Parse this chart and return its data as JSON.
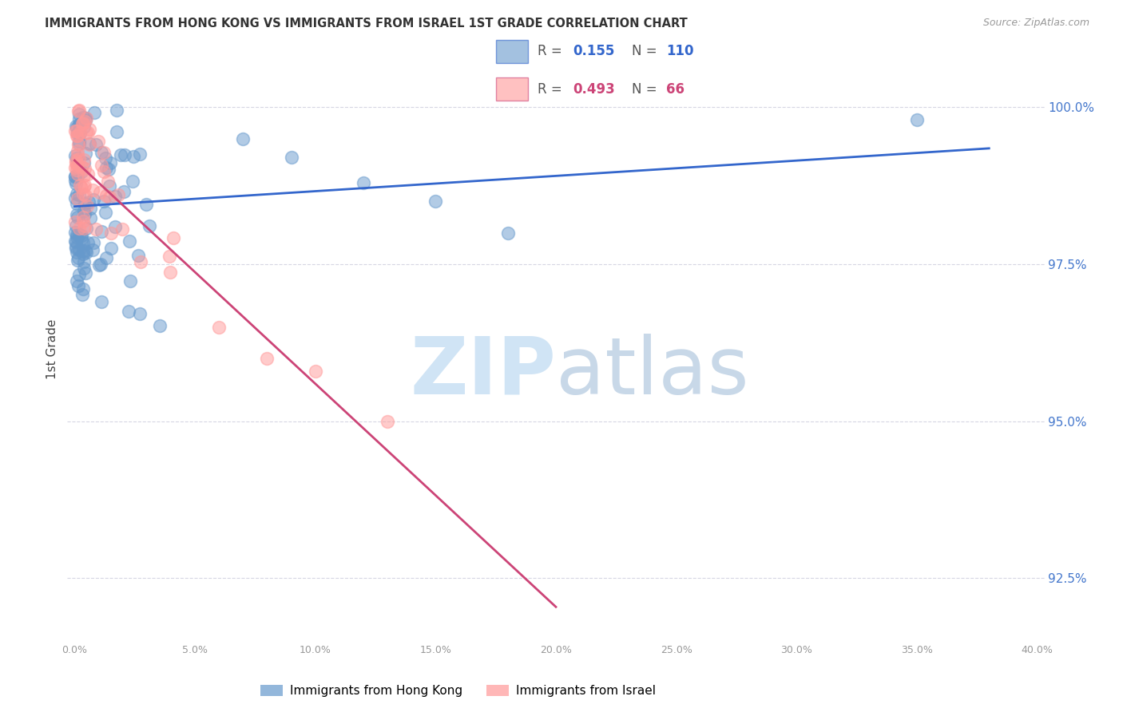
{
  "title": "IMMIGRANTS FROM HONG KONG VS IMMIGRANTS FROM ISRAEL 1ST GRADE CORRELATION CHART",
  "source": "Source: ZipAtlas.com",
  "ylabel": "1st Grade",
  "ylabel_right_ticks": [
    92.5,
    95.0,
    97.5,
    100.0
  ],
  "ylabel_right_labels": [
    "92.5%",
    "95.0%",
    "97.5%",
    "100.0%"
  ],
  "xmin": 0.0,
  "xmax": 40.0,
  "ymin": 91.5,
  "ymax": 100.8,
  "R_hk": 0.155,
  "N_hk": 110,
  "R_isr": 0.493,
  "N_isr": 66,
  "hk_color": "#6699CC",
  "isr_color": "#FF9999",
  "hk_line_color": "#3366CC",
  "isr_line_color": "#CC4477",
  "watermark_color": "#D0E4F5",
  "legend1_label": "Immigrants from Hong Kong",
  "legend2_label": "Immigrants from Israel"
}
